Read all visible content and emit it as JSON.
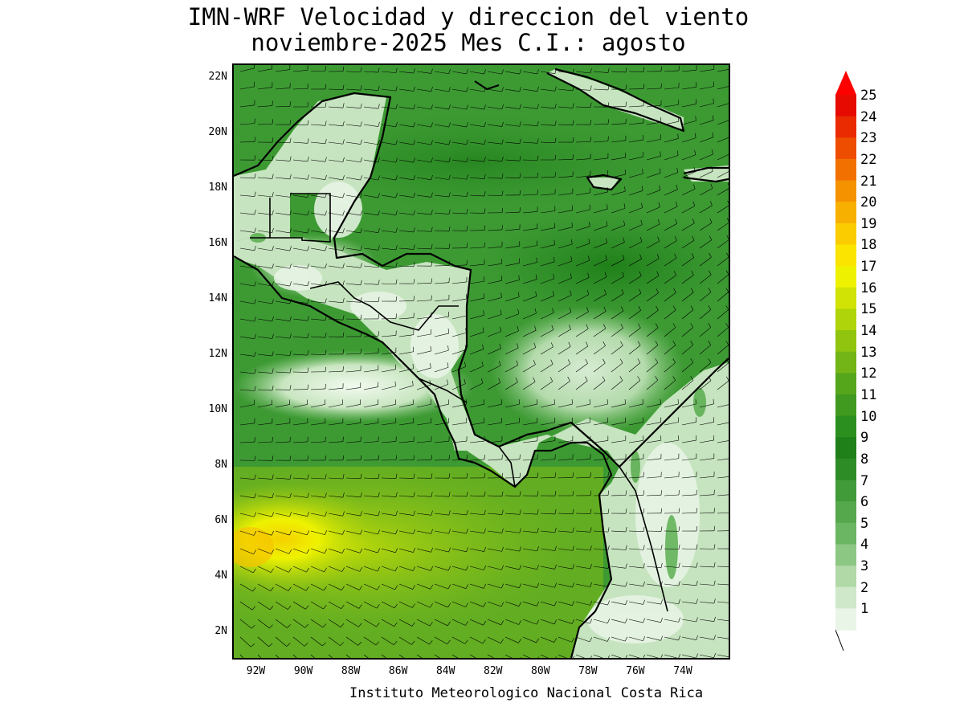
{
  "title": {
    "line1": "IMN-WRF Velocidad y direccion del viento",
    "line2": "noviembre-2025 Mes C.I.: agosto"
  },
  "footer": "Instituto Meteorologico Nacional Costa Rica",
  "map": {
    "lon_range": [
      -93.0,
      -72.0
    ],
    "lat_range": [
      1.0,
      22.5
    ],
    "lat_ticks": [
      {
        "lat": 22,
        "label": "22N"
      },
      {
        "lat": 20,
        "label": "20N"
      },
      {
        "lat": 18,
        "label": "18N"
      },
      {
        "lat": 16,
        "label": "16N"
      },
      {
        "lat": 14,
        "label": "14N"
      },
      {
        "lat": 12,
        "label": "12N"
      },
      {
        "lat": 10,
        "label": "10N"
      },
      {
        "lat": 8,
        "label": "8N"
      },
      {
        "lat": 6,
        "label": "6N"
      },
      {
        "lat": 4,
        "label": "4N"
      },
      {
        "lat": 2,
        "label": "2N"
      }
    ],
    "lon_ticks": [
      {
        "lon": -92,
        "label": "92W"
      },
      {
        "lon": -90,
        "label": "90W"
      },
      {
        "lon": -88,
        "label": "88W"
      },
      {
        "lon": -86,
        "label": "86W"
      },
      {
        "lon": -84,
        "label": "84W"
      },
      {
        "lon": -82,
        "label": "82W"
      },
      {
        "lon": -80,
        "label": "80W"
      },
      {
        "lon": -78,
        "label": "78W"
      },
      {
        "lon": -76,
        "label": "76W"
      },
      {
        "lon": -74,
        "label": "74W"
      }
    ],
    "field": "wind speed (shaded) and direction (barbs)"
  },
  "colorbar": {
    "ticks": [
      "1",
      "2",
      "3",
      "4",
      "5",
      "6",
      "7",
      "8",
      "9",
      "10",
      "11",
      "12",
      "13",
      "14",
      "15",
      "16",
      "17",
      "18",
      "19",
      "20",
      "21",
      "22",
      "23",
      "24",
      "25"
    ],
    "colors": [
      "#e9f5e6",
      "#cfe8c9",
      "#b0d9a7",
      "#8cc783",
      "#6bb663",
      "#55a84c",
      "#419b38",
      "#2e8c27",
      "#1f7f19",
      "#2a8f1f",
      "#3f9a1f",
      "#56a61c",
      "#73b516",
      "#90c40f",
      "#b0d40a",
      "#d0e305",
      "#eef200",
      "#fbe500",
      "#fbcc00",
      "#f8b000",
      "#f59200",
      "#f27000",
      "#ee4d00",
      "#ea2a00",
      "#e60a00"
    ],
    "overflow_color": "#ff0000"
  }
}
